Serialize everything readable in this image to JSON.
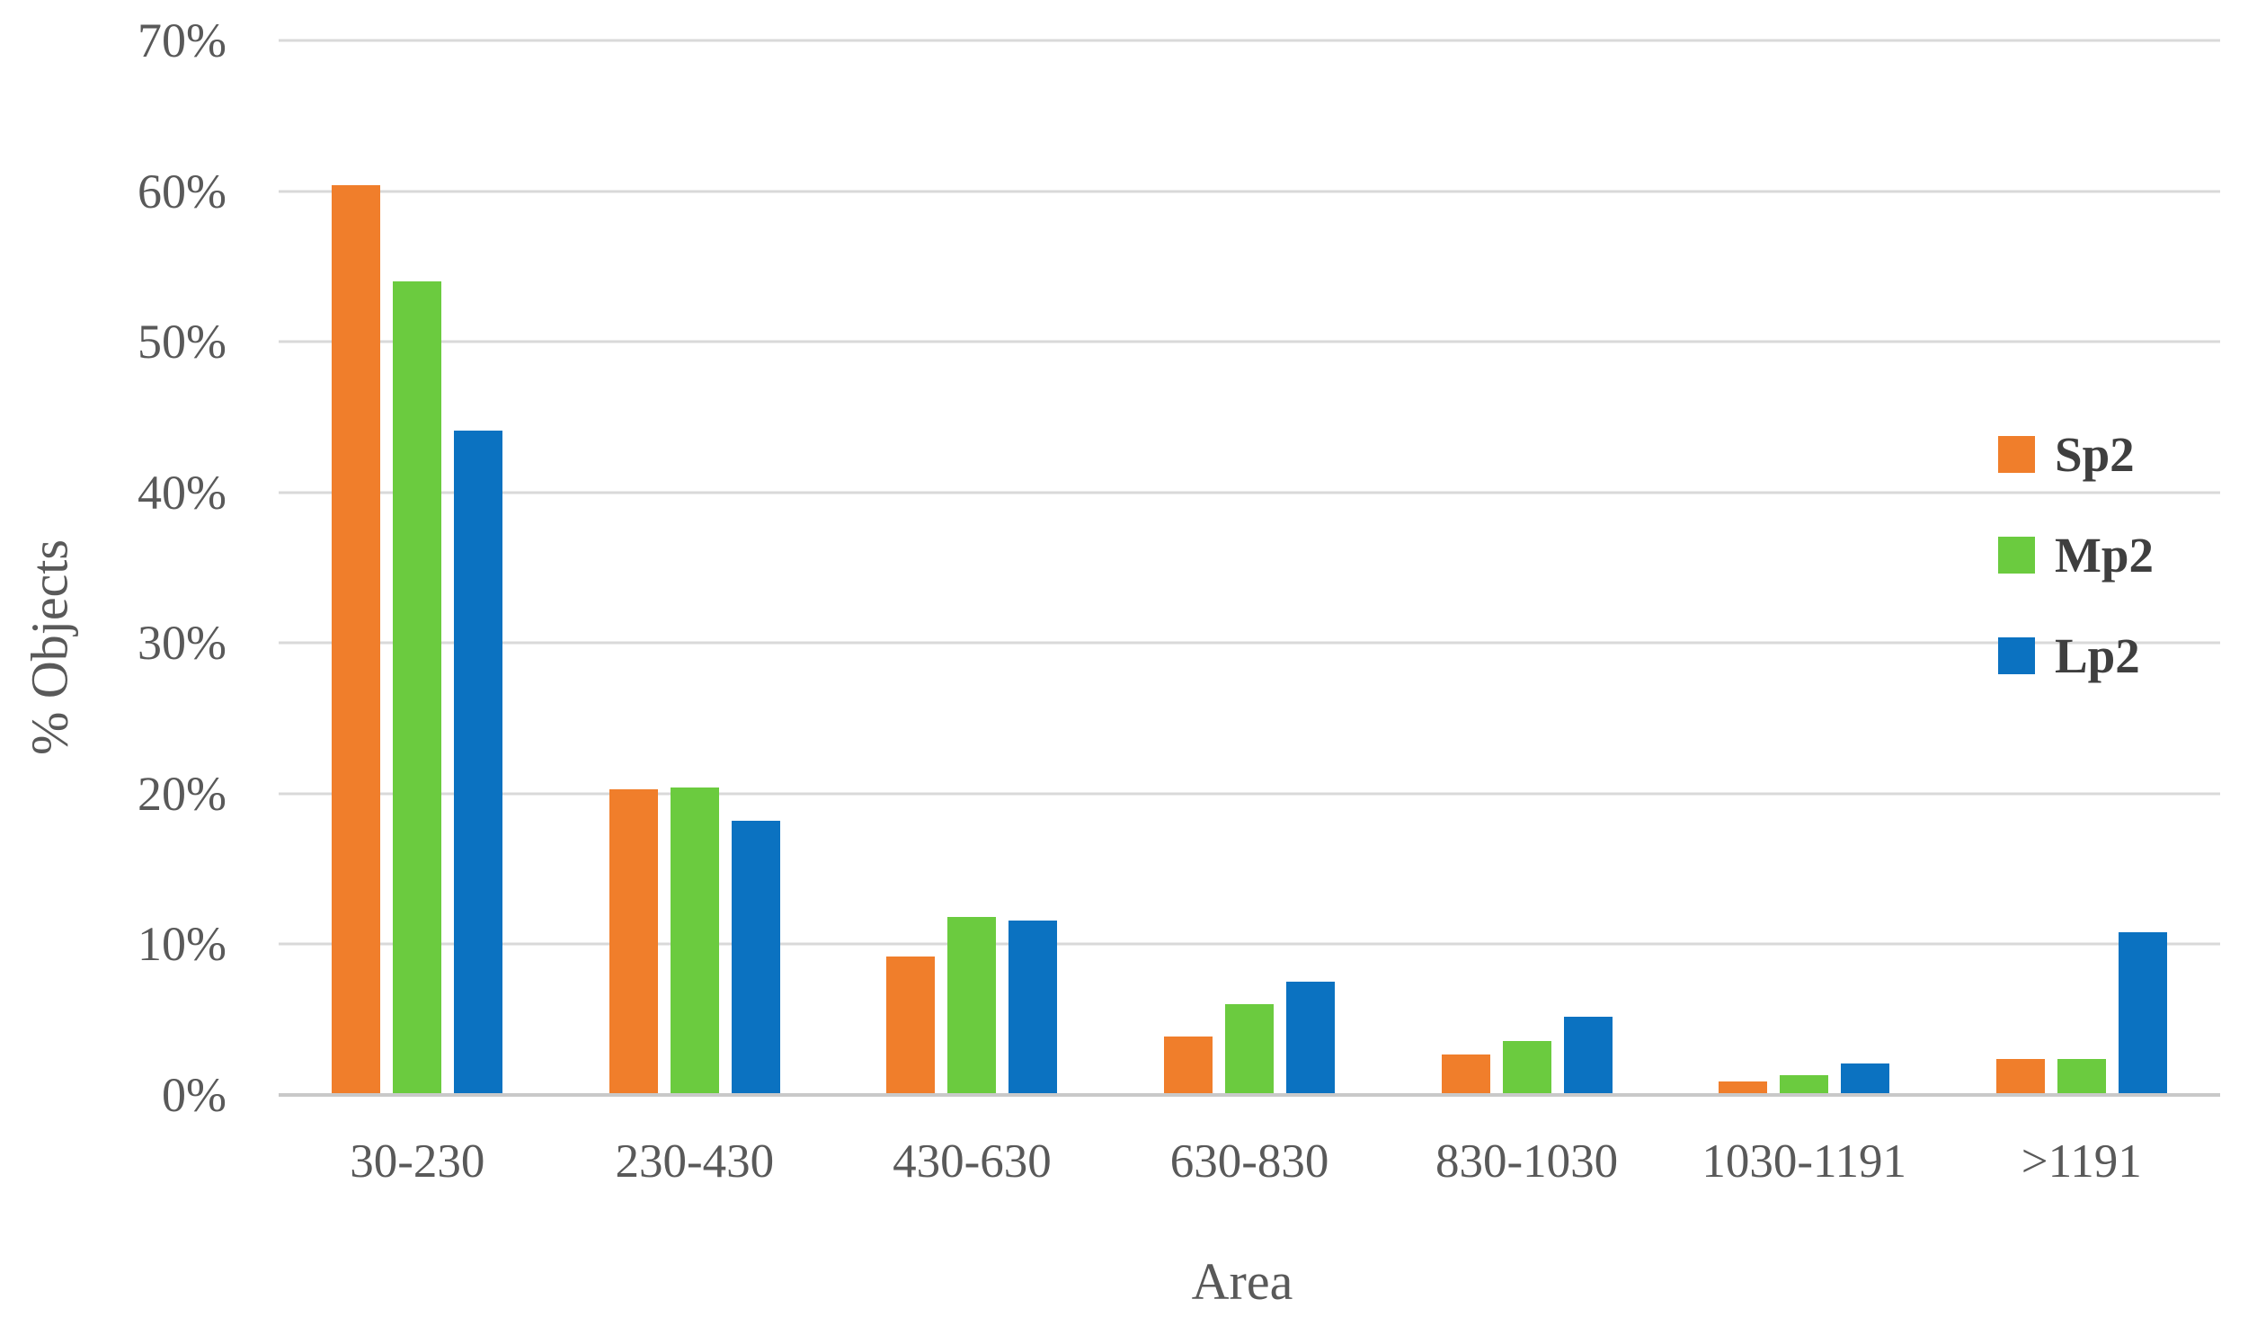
{
  "chart_data": {
    "type": "bar",
    "title": "",
    "xlabel": "Area",
    "ylabel": "% Objects",
    "categories": [
      "30-230",
      "230-430",
      "430-630",
      "630-830",
      "830-1030",
      "1030-1191",
      ">1191"
    ],
    "series": [
      {
        "name": "Sp2",
        "color": "#F07E2B",
        "values": [
          60.4,
          20.3,
          9.2,
          3.9,
          2.7,
          0.9,
          2.4
        ]
      },
      {
        "name": "Mp2",
        "color": "#6BCB3F",
        "values": [
          54.0,
          20.4,
          11.8,
          6.0,
          3.6,
          1.3,
          2.4
        ]
      },
      {
        "name": "Lp2",
        "color": "#0B72C1",
        "values": [
          44.1,
          18.2,
          11.6,
          7.5,
          5.2,
          2.1,
          10.8
        ]
      }
    ],
    "ylim": [
      0,
      70
    ],
    "ytick_step": 10,
    "ytick_labels": [
      "0%",
      "10%",
      "20%",
      "30%",
      "40%",
      "50%",
      "60%",
      "70%"
    ],
    "grid": true,
    "legend_position": "right-inside",
    "colors": {
      "gridline": "#d9d9d9",
      "axis_line": "#c9c9c9",
      "tick_text": "#595959",
      "legend_text": "#3f3f3f"
    }
  }
}
